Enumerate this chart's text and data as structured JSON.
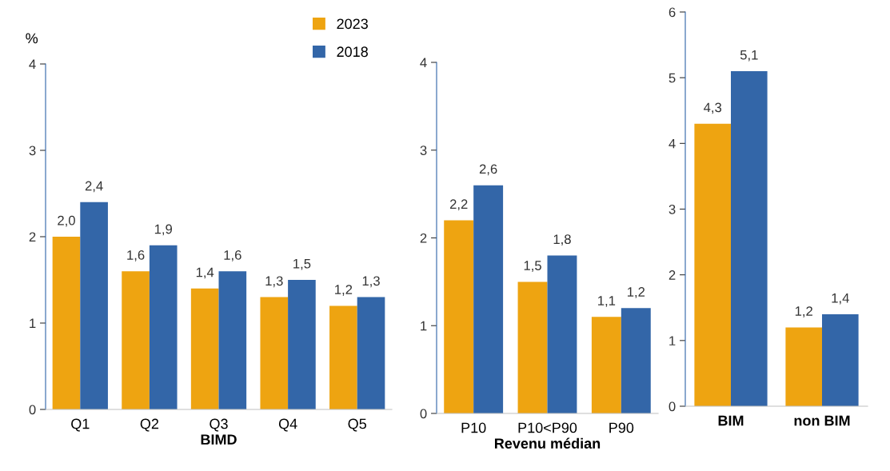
{
  "chart_data": [
    {
      "type": "bar",
      "ylabel": "%",
      "xlabel": "BIMD",
      "categories": [
        "Q1",
        "Q2",
        "Q3",
        "Q4",
        "Q5"
      ],
      "ylim": [
        0,
        4
      ],
      "yticks": [
        0,
        1,
        2,
        3,
        4
      ],
      "legend": "top right",
      "grid": false,
      "series": [
        {
          "name": "2023",
          "color": "#eea411",
          "values": [
            2.0,
            1.6,
            1.4,
            1.3,
            1.2
          ],
          "value_labels": [
            "2,0",
            "1,6",
            "1,4",
            "1,3",
            "1,2"
          ]
        },
        {
          "name": "2018",
          "color": "#3366a8",
          "values": [
            2.4,
            1.9,
            1.6,
            1.5,
            1.3
          ],
          "value_labels": [
            "2,4",
            "1,9",
            "1,6",
            "1,5",
            "1,3"
          ]
        }
      ]
    },
    {
      "type": "bar",
      "xlabel": "Revenu médian",
      "categories": [
        "P10",
        "P10<P90",
        "P90"
      ],
      "ylim": [
        0,
        4
      ],
      "yticks": [
        0,
        1,
        2,
        3,
        4
      ],
      "grid": false,
      "series": [
        {
          "color": "#eea411",
          "values": [
            2.2,
            1.5,
            1.1
          ],
          "value_labels": [
            "2,2",
            "1,5",
            "1,1"
          ]
        },
        {
          "color": "#3366a8",
          "values": [
            2.6,
            1.8,
            1.2
          ],
          "value_labels": [
            "2,6",
            "1,8",
            "1,2"
          ]
        }
      ]
    },
    {
      "type": "bar",
      "categories": [
        "BIM",
        "non BIM"
      ],
      "ylim": [
        0,
        6
      ],
      "yticks": [
        0,
        1,
        2,
        3,
        4,
        5,
        6
      ],
      "grid": false,
      "series": [
        {
          "color": "#eea411",
          "values": [
            4.3,
            1.2
          ],
          "value_labels": [
            "4,3",
            "1,2"
          ]
        },
        {
          "color": "#3366a8",
          "values": [
            5.1,
            1.4
          ],
          "value_labels": [
            "5,1",
            "1,4"
          ]
        }
      ]
    }
  ]
}
